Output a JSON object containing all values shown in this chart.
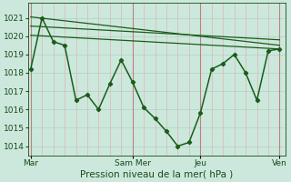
{
  "background_color": "#cce8dc",
  "grid_color_h": "#b8d8cc",
  "grid_color_v": "#e8a0a0",
  "line_color": "#1a5c1a",
  "marker_color": "#1a5c1a",
  "xlabel": "Pression niveau de la mer( hPa )",
  "ylim": [
    1013.5,
    1021.8
  ],
  "yticks": [
    1014,
    1015,
    1016,
    1017,
    1018,
    1019,
    1020,
    1021
  ],
  "xtick_labels": [
    "Mar",
    "Sam Mer",
    "Jeu",
    "Ven"
  ],
  "xtick_positions": [
    0,
    36,
    60,
    88
  ],
  "x_vlines": [
    0,
    36,
    60,
    88
  ],
  "main_line_x": [
    0,
    4,
    8,
    12,
    16,
    20,
    24,
    28,
    32,
    36,
    40,
    44,
    48,
    52,
    56,
    60,
    64,
    68,
    72,
    76,
    80,
    84,
    88
  ],
  "main_line_y": [
    1018.2,
    1021.0,
    1019.7,
    1019.5,
    1016.5,
    1016.8,
    1016.0,
    1017.4,
    1018.7,
    1017.5,
    1016.1,
    1015.5,
    1014.8,
    1014.0,
    1014.2,
    1015.8,
    1018.2,
    1018.5,
    1019.0,
    1018.0,
    1016.5,
    1019.2,
    1019.3
  ],
  "trend_line1_x": [
    0,
    88
  ],
  "trend_line1_y": [
    1021.05,
    1019.5
  ],
  "trend_line2_x": [
    0,
    88
  ],
  "trend_line2_y": [
    1020.55,
    1019.8
  ],
  "trend_line3_x": [
    0,
    88
  ],
  "trend_line3_y": [
    1020.05,
    1019.3
  ],
  "xlabel_fontsize": 7.5,
  "ytick_fontsize": 6.5,
  "xtick_fontsize": 6.5
}
